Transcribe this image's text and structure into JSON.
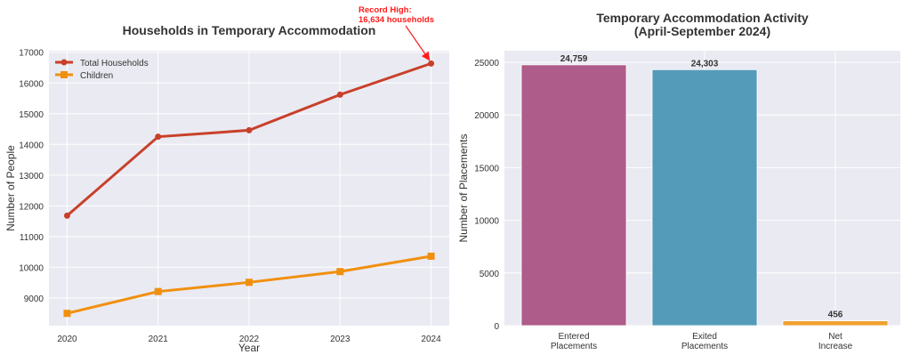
{
  "chart_data": [
    {
      "type": "line",
      "title": "Households in Temporary Accommodation",
      "xlabel": "Year",
      "ylabel": "Number of People",
      "x": [
        2020,
        2021,
        2022,
        2023,
        2024
      ],
      "x_tick_labels": [
        "2020",
        "2021",
        "2022",
        "2023",
        "2024"
      ],
      "y_ticks": [
        9000,
        10000,
        11000,
        12000,
        13000,
        14000,
        15000,
        16000,
        17000
      ],
      "y_tick_labels": [
        "9000",
        "10000",
        "11000",
        "12000",
        "13000",
        "14000",
        "15000",
        "16000",
        "17000"
      ],
      "xlim": [
        2019.8,
        2024.2
      ],
      "ylim": [
        8100,
        17050
      ],
      "grid": true,
      "legend_position": "top-left",
      "series": [
        {
          "name": "Total Households",
          "color": "#C8402A",
          "marker": "circle",
          "values": [
            11680,
            14250,
            14460,
            15620,
            16634
          ]
        },
        {
          "name": "Children",
          "color": "#F0900F",
          "marker": "square",
          "values": [
            8500,
            9210,
            9510,
            9860,
            10360
          ]
        }
      ],
      "annotation": {
        "line1": "Record High:",
        "line2": "16,634 households",
        "x": 2024,
        "y": 16634,
        "color": "#FF1A1A"
      }
    },
    {
      "type": "bar",
      "title_line1": "Temporary Accommodation Activity",
      "title_line2": "(April-September 2024)",
      "xlabel": "",
      "ylabel": "Number of Placements",
      "categories": [
        [
          "Entered",
          "Placements"
        ],
        [
          "Exited",
          "Placements"
        ],
        [
          "Net",
          "Increase"
        ]
      ],
      "values": [
        24759,
        24303,
        456
      ],
      "value_labels": [
        "24,759",
        "24,303",
        "456"
      ],
      "colors": [
        "#AE5C89",
        "#549BBA",
        "#F0A030"
      ],
      "y_ticks": [
        0,
        5000,
        10000,
        15000,
        20000,
        25000
      ],
      "y_tick_labels": [
        "0",
        "5000",
        "10000",
        "15000",
        "20000",
        "25000"
      ],
      "ylim": [
        0,
        26100
      ],
      "grid": true
    }
  ]
}
